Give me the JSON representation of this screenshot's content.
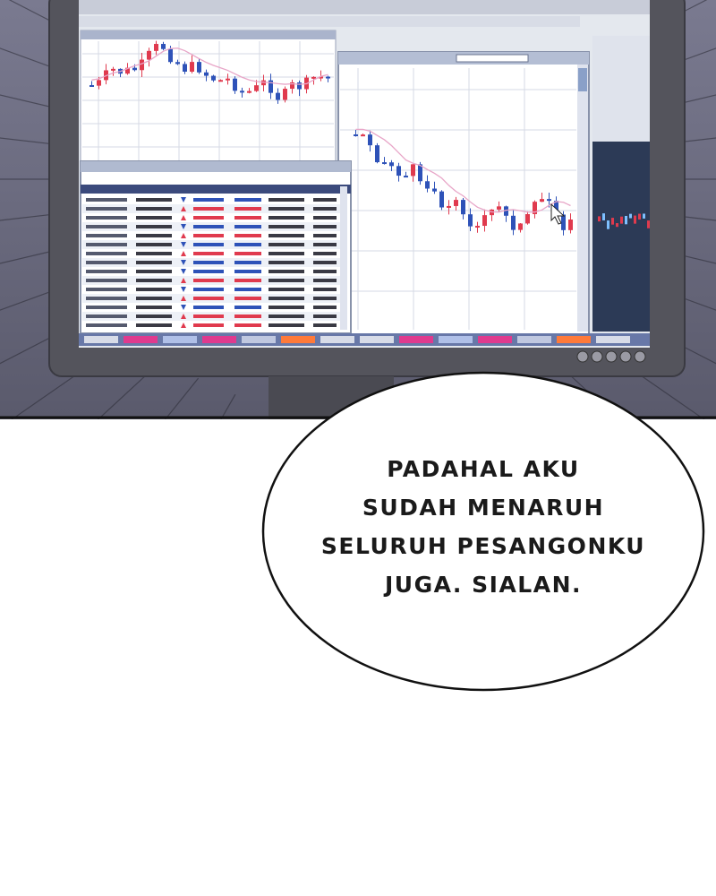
{
  "panel": {
    "scene": "stock-trading-monitor",
    "colors": {
      "background": "#6a6a7e",
      "monitor_bezel": "#55555e",
      "screen_bg": "#e4e8ee",
      "candle_up": "#e03a4e",
      "candle_down": "#2e52b8",
      "moving_average": "#e8a6c8",
      "bubble_fill": "#ffffff",
      "bubble_stroke": "#111111"
    }
  },
  "speech_bubble": {
    "lines": [
      "PADAHAL AKU",
      "SUDAH MENARUH",
      "SELURUH PESANGONKU",
      "JUGA. SIALAN."
    ]
  }
}
